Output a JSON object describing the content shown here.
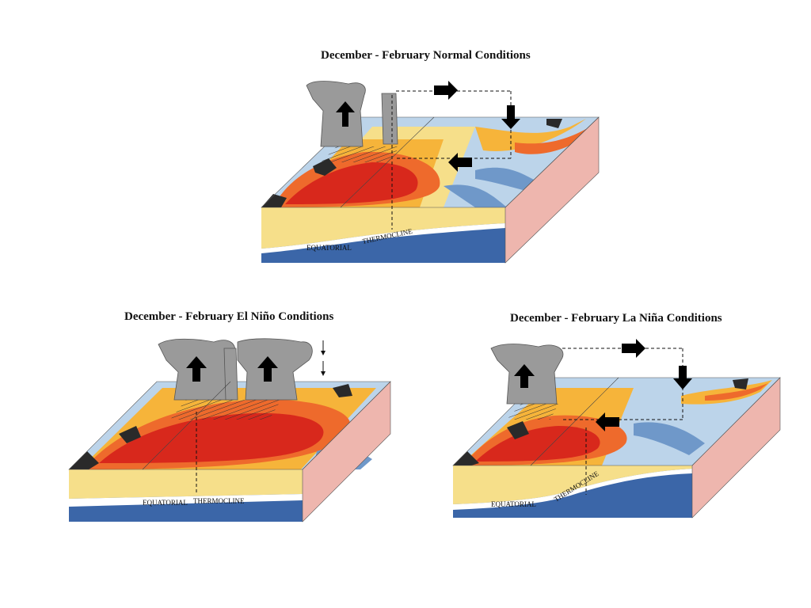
{
  "panels": {
    "normal": {
      "title": "December - February Normal Conditions",
      "thermocline_label_1": "EQUATORIAL",
      "thermocline_label_2": "THERMOCLINE"
    },
    "elnino": {
      "title": "December - February El Niño Conditions",
      "thermocline_label_1": "EQUATORIAL",
      "thermocline_label_2": "THERMOCLINE"
    },
    "lanina": {
      "title": "December - February La Niña Conditions",
      "thermocline_label_1": "EQUATORIAL",
      "thermocline_label_2": "THERMOCLINE"
    }
  },
  "colors": {
    "warm_core": "#d8281c",
    "warm": "#ee6a2c",
    "mild": "#f6b43a",
    "neutral": "#f7e08e",
    "cool": "#bcd4ea",
    "cold": "#6f98c9",
    "deep": "#3b66a8",
    "upper_layer": "#f6df8a",
    "side_face": "#eeb6ae",
    "land": "#2a2a2a",
    "cloud": "#9a9a9a"
  }
}
